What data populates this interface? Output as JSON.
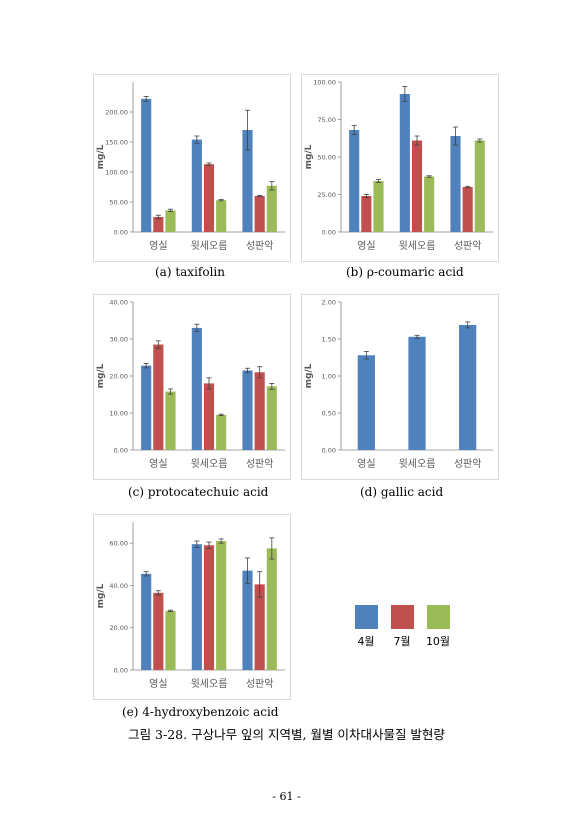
{
  "colors": {
    "april": "#4f81bd",
    "july": "#c0504d",
    "october": "#9bbb59",
    "axis_text": "#595959",
    "frame": "#d9d9d9",
    "error_bar": "#404040"
  },
  "legend": {
    "items": [
      "4월",
      "7월",
      "10월"
    ]
  },
  "figure_caption": "그림 3-28. 구상나무 잎의 지역별, 월별 이차대사물질 발현량",
  "page_number": "- 61 -",
  "chart_data": [
    {
      "type": "bar",
      "caption": "(a)  taxifolin",
      "ylabel": "mg/L",
      "categories": [
        "영실",
        "윗세오름",
        "성판악"
      ],
      "ylim": [
        0,
        250
      ],
      "yticks": [
        "0.00",
        "50.00",
        "100.00",
        "150.00",
        "200.00"
      ],
      "ytick_values": [
        0,
        50,
        100,
        150,
        200
      ],
      "series": [
        {
          "values": [
            222,
            154,
            170
          ],
          "errors": [
            4,
            6,
            33
          ]
        },
        {
          "values": [
            25,
            113,
            60
          ],
          "errors": [
            3,
            2,
            1
          ]
        },
        {
          "values": [
            36,
            53,
            77
          ],
          "errors": [
            2,
            1,
            7
          ]
        }
      ]
    },
    {
      "type": "bar",
      "caption": "(b)  ρ-coumaric  acid",
      "ylabel": "mg/L",
      "categories": [
        "영실",
        "윗세오름",
        "성판악"
      ],
      "ylim": [
        0,
        100
      ],
      "yticks": [
        "0.00",
        "25.00",
        "50.00",
        "75.00",
        "100.00"
      ],
      "ytick_values": [
        0,
        25,
        50,
        75,
        100
      ],
      "series": [
        {
          "values": [
            68,
            92,
            64
          ],
          "errors": [
            3,
            5,
            6
          ]
        },
        {
          "values": [
            24,
            61,
            30
          ],
          "errors": [
            1,
            3,
            0.5
          ]
        },
        {
          "values": [
            34,
            37,
            61
          ],
          "errors": [
            1,
            0.5,
            1
          ]
        }
      ]
    },
    {
      "type": "bar",
      "caption": "(c)  protocatechuic  acid",
      "ylabel": "mg/L",
      "categories": [
        "영실",
        "윗세오름",
        "성판악"
      ],
      "ylim": [
        0,
        40
      ],
      "yticks": [
        "0.00",
        "10.00",
        "20.00",
        "30.00",
        "40.00"
      ],
      "ytick_values": [
        0,
        10,
        20,
        30,
        40
      ],
      "series": [
        {
          "values": [
            22.8,
            33.0,
            21.5
          ],
          "errors": [
            0.6,
            1.0,
            0.6
          ]
        },
        {
          "values": [
            28.5,
            18.0,
            21.0
          ],
          "errors": [
            1.0,
            1.5,
            1.5
          ]
        },
        {
          "values": [
            15.8,
            9.5,
            17.2
          ],
          "errors": [
            0.7,
            0.2,
            0.8
          ]
        }
      ]
    },
    {
      "type": "bar",
      "caption": "(d)  gallic  acid",
      "ylabel": "mg/L",
      "categories": [
        "영실",
        "윗세오름",
        "성판악"
      ],
      "ylim": [
        0,
        2
      ],
      "yticks": [
        "0.00",
        "0.50",
        "1.00",
        "1.50",
        "2.00"
      ],
      "ytick_values": [
        0,
        0.5,
        1,
        1.5,
        2
      ],
      "series": [
        {
          "values": [
            1.28,
            1.53,
            1.69
          ],
          "errors": [
            0.05,
            0.02,
            0.04
          ]
        }
      ]
    },
    {
      "type": "bar",
      "caption": "(e)  4-hydroxybenzoic  acid",
      "ylabel": "mg/L",
      "categories": [
        "영실",
        "윗세오름",
        "성판악"
      ],
      "ylim": [
        0,
        70
      ],
      "yticks": [
        "0.00",
        "20.00",
        "40.00",
        "60.00"
      ],
      "ytick_values": [
        0,
        20,
        40,
        60
      ],
      "series": [
        {
          "values": [
            45.5,
            59.5,
            47.0
          ],
          "errors": [
            1,
            1.5,
            6
          ]
        },
        {
          "values": [
            36.5,
            59.0,
            40.5
          ],
          "errors": [
            1,
            1.5,
            6
          ]
        },
        {
          "values": [
            28.0,
            61.0,
            57.5
          ],
          "errors": [
            0.3,
            1,
            5
          ]
        }
      ]
    }
  ]
}
